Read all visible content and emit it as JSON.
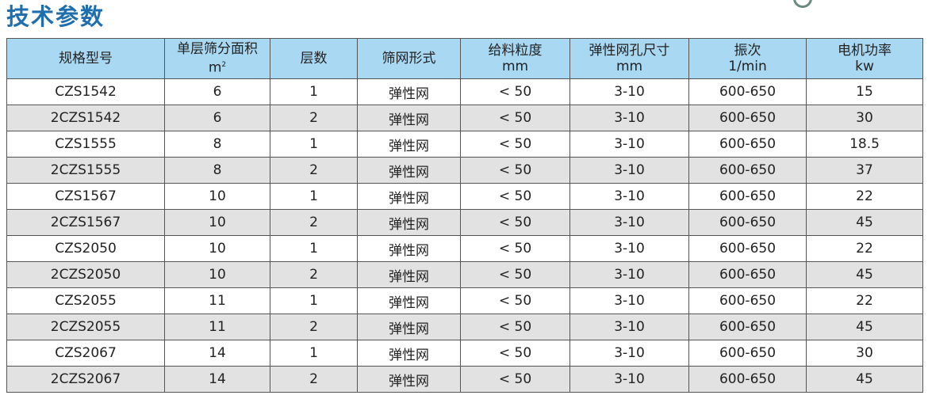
{
  "title": "技术参数",
  "headers": [
    {
      "line1": "规格型号",
      "line2": ""
    },
    {
      "line1": "单层筛分面积",
      "line2": "m",
      "sup": "2"
    },
    {
      "line1": "层数",
      "line2": ""
    },
    {
      "line1": "筛网形式",
      "line2": ""
    },
    {
      "line1": "给料粒度",
      "line2": "mm"
    },
    {
      "line1": "弹性网孔尺寸",
      "line2": "mm"
    },
    {
      "line1": "振次",
      "line2": "1/min"
    },
    {
      "line1": "电机功率",
      "line2": "kw"
    }
  ],
  "rows": [
    [
      "CZS1542",
      "6",
      "1",
      "弹性网",
      "< 50",
      "3-10",
      "600-650",
      "15"
    ],
    [
      "2CZS1542",
      "6",
      "2",
      "弹性网",
      "< 50",
      "3-10",
      "600-650",
      "30"
    ],
    [
      "CZS1555",
      "8",
      "1",
      "弹性网",
      "< 50",
      "3-10",
      "600-650",
      "18.5"
    ],
    [
      "2CZS1555",
      "8",
      "2",
      "弹性网",
      "< 50",
      "3-10",
      "600-650",
      "37"
    ],
    [
      "CZS1567",
      "10",
      "1",
      "弹性网",
      "< 50",
      "3-10",
      "600-650",
      "22"
    ],
    [
      "2CZS1567",
      "10",
      "2",
      "弹性网",
      "< 50",
      "3-10",
      "600-650",
      "45"
    ],
    [
      "CZS2050",
      "10",
      "1",
      "弹性网",
      "< 50",
      "3-10",
      "600-650",
      "22"
    ],
    [
      "2CZS2050",
      "10",
      "2",
      "弹性网",
      "< 50",
      "3-10",
      "600-650",
      "45"
    ],
    [
      "CZS2055",
      "11",
      "1",
      "弹性网",
      "< 50",
      "3-10",
      "600-650",
      "22"
    ],
    [
      "2CZS2055",
      "11",
      "2",
      "弹性网",
      "< 50",
      "3-10",
      "600-650",
      "45"
    ],
    [
      "CZS2067",
      "14",
      "1",
      "弹性网",
      "< 50",
      "3-10",
      "600-650",
      "30"
    ],
    [
      "2CZS2067",
      "14",
      "2",
      "弹性网",
      "< 50",
      "3-10",
      "600-650",
      "45"
    ]
  ],
  "colors": {
    "title": "#1f6fae",
    "header_bg": "#a9d8f3",
    "stripe": "#e2e2e2"
  }
}
